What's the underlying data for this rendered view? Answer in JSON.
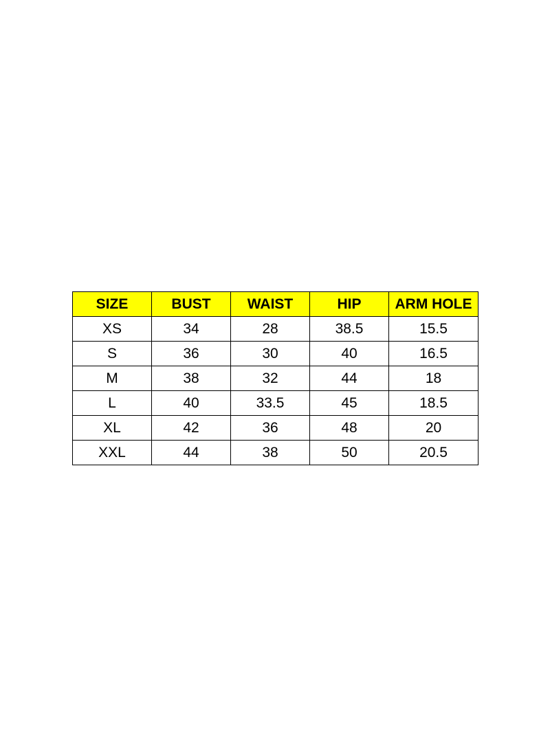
{
  "table": {
    "header": [
      "SIZE",
      "BUST",
      "WAIST",
      "HIP",
      "ARM HOLE"
    ],
    "rows": [
      [
        "XS",
        34,
        28,
        38.5,
        15.5
      ],
      [
        "S",
        36,
        30,
        40,
        16.5
      ],
      [
        "M",
        38,
        32,
        44,
        18
      ],
      [
        "L",
        40,
        33.5,
        45,
        18.5
      ],
      [
        "XL",
        42,
        36,
        48,
        20
      ],
      [
        "XXL",
        44,
        38,
        50,
        20.5
      ]
    ]
  }
}
